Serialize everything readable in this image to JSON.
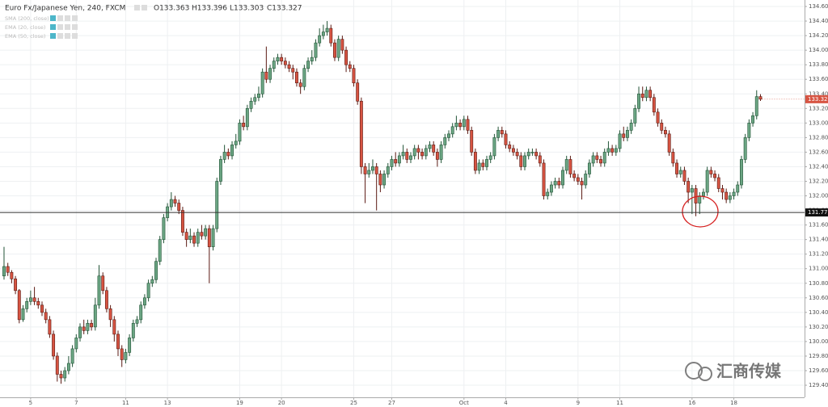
{
  "chart_data": {
    "type": "candlestick",
    "title": "Euro Fx/Japanese Yen, 240, FXCM",
    "ohlc_labels": [
      "O133.363",
      "H133.396",
      "L133.303",
      "C133.327"
    ],
    "indicators": [
      "SMA (200, close)",
      "EMA (20, close)",
      "EMA (50, close)"
    ],
    "up_color": "#6ba583",
    "up_edge": "#225437",
    "down_color": "#d75442",
    "down_edge": "#5b1a13",
    "grid": true,
    "open": [
      130.9,
      131.03,
      130.95,
      130.86,
      130.7,
      130.3,
      130.45,
      130.55,
      130.6,
      130.55,
      130.5,
      130.4,
      130.3,
      130.1,
      129.8,
      129.55,
      129.5,
      129.6,
      129.7,
      129.9,
      130.05,
      130.2,
      130.15,
      130.25,
      130.2,
      130.5,
      130.9,
      130.7,
      130.45,
      130.3,
      130.1,
      129.9,
      129.75,
      129.85,
      130.05,
      130.25,
      130.3,
      130.5,
      130.6,
      130.8,
      130.85,
      131.1,
      131.4,
      131.7,
      131.85,
      131.95,
      131.9,
      131.8,
      131.5,
      131.4,
      131.45,
      131.35,
      131.5,
      131.45,
      131.55,
      131.3,
      131.55,
      132.2,
      132.5,
      132.6,
      132.55,
      132.7,
      132.75,
      133.0,
      132.95,
      133.2,
      133.3,
      133.35,
      133.4,
      133.7,
      133.6,
      133.75,
      133.85,
      133.9,
      133.85,
      133.8,
      133.75,
      133.7,
      133.55,
      133.5,
      133.75,
      133.85,
      133.9,
      134.1,
      134.2,
      134.25,
      134.3,
      134.1,
      133.9,
      134.15,
      134.0,
      133.8,
      133.75,
      133.55,
      133.3,
      132.4,
      132.3,
      132.35,
      132.4,
      132.3,
      132.15,
      132.3,
      132.4,
      132.5,
      132.45,
      132.55,
      132.6,
      132.5,
      132.55,
      132.65,
      132.6,
      132.55,
      132.65,
      132.7,
      132.6,
      132.5,
      132.7,
      132.8,
      132.85,
      132.95,
      133.0,
      132.95,
      133.05,
      132.9,
      132.6,
      132.35,
      132.45,
      132.4,
      132.5,
      132.55,
      132.8,
      132.9,
      132.85,
      132.7,
      132.65,
      132.6,
      132.55,
      132.4,
      132.55,
      132.6,
      132.6,
      132.55,
      132.45,
      132.0,
      132.05,
      132.15,
      132.2,
      132.15,
      132.35,
      132.5,
      132.3,
      132.25,
      132.2,
      132.15,
      132.3,
      132.45,
      132.55,
      132.5,
      132.45,
      132.6,
      132.65,
      132.6,
      132.65,
      132.85,
      132.8,
      132.9,
      133.0,
      133.2,
      133.4,
      133.35,
      133.45,
      133.35,
      133.15,
      133.0,
      132.9,
      132.85,
      132.6,
      132.45,
      132.3,
      132.35,
      132.2,
      132.05,
      132.1,
      131.9,
      132.0,
      132.05,
      132.35,
      132.3,
      132.25,
      132.1,
      132.05,
      131.95,
      132.0,
      132.05,
      132.15,
      132.5,
      132.8,
      133.0,
      133.1,
      133.363
    ],
    "high": [
      131.3,
      131.08,
      130.98,
      130.9,
      130.72,
      130.5,
      130.6,
      130.7,
      130.75,
      130.6,
      130.55,
      130.45,
      130.35,
      130.15,
      129.85,
      129.6,
      129.65,
      129.8,
      129.95,
      130.1,
      130.25,
      130.3,
      130.3,
      130.3,
      130.6,
      131.05,
      130.95,
      130.75,
      130.5,
      130.35,
      130.15,
      129.95,
      129.9,
      130.1,
      130.3,
      130.35,
      130.55,
      130.65,
      130.85,
      130.9,
      131.15,
      131.45,
      131.75,
      131.9,
      132.05,
      132.0,
      131.95,
      131.85,
      131.55,
      131.55,
      131.5,
      131.55,
      131.6,
      131.6,
      131.6,
      131.6,
      132.25,
      132.55,
      132.7,
      132.65,
      132.75,
      132.85,
      133.05,
      133.1,
      133.25,
      133.35,
      133.4,
      133.5,
      133.75,
      134.05,
      133.8,
      133.9,
      133.95,
      133.95,
      133.9,
      133.85,
      133.8,
      133.75,
      133.6,
      133.8,
      133.9,
      134.0,
      134.15,
      134.3,
      134.35,
      134.4,
      134.35,
      134.15,
      134.2,
      134.2,
      134.05,
      133.85,
      133.8,
      133.6,
      133.35,
      132.45,
      132.45,
      132.5,
      132.45,
      132.35,
      132.35,
      132.45,
      132.55,
      132.6,
      132.6,
      132.7,
      132.65,
      132.6,
      132.7,
      132.7,
      132.65,
      132.7,
      132.75,
      132.75,
      132.65,
      132.75,
      132.85,
      132.9,
      133.0,
      133.1,
      133.05,
      133.1,
      133.1,
      132.95,
      132.65,
      132.5,
      132.5,
      132.55,
      132.6,
      132.85,
      132.95,
      132.95,
      132.9,
      132.75,
      132.7,
      132.65,
      132.6,
      132.6,
      132.65,
      132.65,
      132.65,
      132.6,
      132.5,
      132.1,
      132.2,
      132.25,
      132.25,
      132.4,
      132.55,
      132.55,
      132.35,
      132.3,
      132.25,
      132.35,
      132.5,
      132.6,
      132.6,
      132.55,
      132.65,
      132.75,
      132.7,
      132.7,
      132.9,
      132.95,
      132.95,
      133.05,
      133.25,
      133.5,
      133.5,
      133.5,
      133.5,
      133.4,
      133.2,
      133.05,
      132.95,
      132.9,
      132.65,
      132.5,
      132.4,
      132.4,
      132.25,
      132.15,
      132.15,
      132.05,
      132.1,
      132.4,
      132.4,
      132.35,
      132.3,
      132.15,
      132.1,
      132.05,
      132.1,
      132.2,
      132.55,
      132.85,
      133.05,
      133.15,
      133.45,
      133.396
    ],
    "low": [
      130.85,
      130.9,
      130.8,
      130.65,
      130.25,
      130.27,
      130.4,
      130.5,
      130.5,
      130.45,
      130.35,
      130.25,
      130.05,
      129.75,
      129.45,
      129.42,
      129.45,
      129.55,
      129.65,
      129.85,
      130.0,
      130.1,
      130.1,
      130.15,
      130.15,
      130.45,
      130.65,
      130.4,
      130.2,
      130.0,
      129.8,
      129.65,
      129.7,
      129.8,
      130.0,
      130.2,
      130.25,
      130.45,
      130.55,
      130.75,
      130.8,
      131.05,
      131.35,
      131.65,
      131.8,
      131.85,
      131.75,
      131.45,
      131.3,
      131.35,
      131.3,
      131.3,
      131.4,
      131.4,
      130.8,
      131.25,
      131.5,
      132.15,
      132.45,
      132.5,
      132.5,
      132.65,
      132.7,
      132.9,
      132.9,
      133.15,
      133.25,
      133.3,
      133.35,
      133.55,
      133.55,
      133.7,
      133.8,
      133.8,
      133.75,
      133.7,
      133.6,
      133.5,
      133.4,
      133.45,
      133.7,
      133.8,
      133.85,
      134.05,
      134.15,
      134.2,
      134.05,
      133.85,
      133.85,
      133.95,
      133.7,
      133.7,
      133.5,
      133.25,
      132.3,
      131.9,
      132.25,
      132.3,
      131.8,
      132.05,
      132.1,
      132.25,
      132.35,
      132.4,
      132.4,
      132.5,
      132.45,
      132.45,
      132.5,
      132.5,
      132.5,
      132.5,
      132.6,
      132.55,
      132.4,
      132.45,
      132.65,
      132.75,
      132.8,
      132.9,
      132.9,
      132.9,
      132.85,
      132.55,
      132.3,
      132.3,
      132.35,
      132.35,
      132.45,
      132.5,
      132.75,
      132.8,
      132.65,
      132.6,
      132.55,
      132.5,
      132.35,
      132.35,
      132.5,
      132.55,
      132.5,
      132.4,
      131.95,
      131.95,
      132.0,
      132.1,
      132.1,
      132.1,
      132.3,
      132.25,
      132.2,
      132.15,
      131.95,
      132.1,
      132.25,
      132.4,
      132.45,
      132.4,
      132.4,
      132.55,
      132.55,
      132.55,
      132.6,
      132.75,
      132.75,
      132.85,
      132.95,
      133.15,
      133.3,
      133.3,
      133.3,
      133.1,
      132.95,
      132.85,
      132.8,
      132.55,
      132.4,
      132.25,
      132.25,
      132.15,
      131.9,
      131.75,
      131.72,
      131.75,
      131.95,
      132.0,
      132.25,
      132.2,
      132.05,
      131.95,
      131.9,
      131.9,
      131.95,
      132.0,
      132.1,
      132.45,
      132.75,
      132.95,
      133.05,
      133.303
    ],
    "close": [
      131.03,
      130.95,
      130.86,
      130.7,
      130.3,
      130.45,
      130.55,
      130.6,
      130.55,
      130.5,
      130.4,
      130.3,
      130.1,
      129.8,
      129.55,
      129.5,
      129.6,
      129.7,
      129.9,
      130.05,
      130.2,
      130.15,
      130.25,
      130.2,
      130.5,
      130.9,
      130.7,
      130.45,
      130.3,
      130.1,
      129.9,
      129.75,
      129.85,
      130.05,
      130.25,
      130.3,
      130.5,
      130.6,
      130.8,
      130.85,
      131.1,
      131.4,
      131.7,
      131.85,
      131.95,
      131.9,
      131.8,
      131.5,
      131.4,
      131.45,
      131.35,
      131.5,
      131.45,
      131.55,
      131.3,
      131.55,
      132.2,
      132.5,
      132.6,
      132.55,
      132.7,
      132.75,
      133.0,
      132.95,
      133.2,
      133.3,
      133.35,
      133.4,
      133.7,
      133.6,
      133.75,
      133.85,
      133.9,
      133.85,
      133.8,
      133.75,
      133.7,
      133.55,
      133.5,
      133.75,
      133.85,
      133.9,
      134.1,
      134.2,
      134.25,
      134.3,
      134.1,
      133.9,
      134.15,
      134.0,
      133.8,
      133.75,
      133.55,
      133.3,
      132.4,
      132.3,
      132.35,
      132.4,
      132.3,
      132.15,
      132.3,
      132.4,
      132.5,
      132.45,
      132.55,
      132.6,
      132.5,
      132.55,
      132.65,
      132.6,
      132.55,
      132.65,
      132.7,
      132.6,
      132.5,
      132.7,
      132.8,
      132.85,
      132.95,
      133.0,
      132.95,
      133.05,
      132.9,
      132.6,
      132.35,
      132.45,
      132.4,
      132.5,
      132.55,
      132.8,
      132.9,
      132.85,
      132.7,
      132.65,
      132.6,
      132.55,
      132.4,
      132.55,
      132.6,
      132.6,
      132.55,
      132.45,
      132.0,
      132.05,
      132.15,
      132.2,
      132.15,
      132.35,
      132.5,
      132.3,
      132.25,
      132.2,
      132.15,
      132.3,
      132.45,
      132.55,
      132.5,
      132.45,
      132.6,
      132.65,
      132.6,
      132.65,
      132.85,
      132.8,
      132.9,
      133.0,
      133.2,
      133.4,
      133.35,
      133.45,
      133.35,
      133.15,
      133.0,
      132.9,
      132.85,
      132.6,
      132.45,
      132.3,
      132.35,
      132.2,
      132.05,
      132.1,
      131.9,
      132.0,
      132.05,
      132.35,
      132.3,
      132.25,
      132.1,
      132.05,
      131.95,
      132.0,
      132.05,
      132.15,
      132.5,
      132.8,
      133.0,
      133.1,
      133.363,
      133.327
    ],
    "xlim": [
      -1.06,
      210.6
    ],
    "xticks": [
      {
        "value": 7,
        "label": "5"
      },
      {
        "value": 19,
        "label": "7"
      },
      {
        "value": 32,
        "label": "11"
      },
      {
        "value": 43,
        "label": "13"
      },
      {
        "value": 62,
        "label": "19"
      },
      {
        "value": 73,
        "label": "20"
      },
      {
        "value": 92,
        "label": "25"
      },
      {
        "value": 102,
        "label": "27"
      },
      {
        "value": 121,
        "label": "Oct"
      },
      {
        "value": 132,
        "label": "4"
      },
      {
        "value": 151,
        "label": "9"
      },
      {
        "value": 162,
        "label": "11"
      },
      {
        "value": 181,
        "label": "16"
      },
      {
        "value": 192,
        "label": "18"
      }
    ],
    "ylim": [
      129.234,
      134.689
    ],
    "yticks": [
      {
        "value": 129.4,
        "label": "129.400"
      },
      {
        "value": 129.6,
        "label": "129.600"
      },
      {
        "value": 129.8,
        "label": "129.800"
      },
      {
        "value": 130.0,
        "label": "130.000"
      },
      {
        "value": 130.2,
        "label": "130.200"
      },
      {
        "value": 130.4,
        "label": "130.400"
      },
      {
        "value": 130.6,
        "label": "130.600"
      },
      {
        "value": 130.8,
        "label": "130.800"
      },
      {
        "value": 131.0,
        "label": "131.000"
      },
      {
        "value": 131.2,
        "label": "131.200"
      },
      {
        "value": 131.4,
        "label": "131.400"
      },
      {
        "value": 131.6,
        "label": "131.600"
      },
      {
        "value": 131.8,
        "label": "131.800"
      },
      {
        "value": 132.0,
        "label": "132.000"
      },
      {
        "value": 132.2,
        "label": "132.200"
      },
      {
        "value": 132.4,
        "label": "132.400"
      },
      {
        "value": 132.6,
        "label": "132.600"
      },
      {
        "value": 132.8,
        "label": "132.800"
      },
      {
        "value": 133.0,
        "label": "133.000"
      },
      {
        "value": 133.2,
        "label": "133.200"
      },
      {
        "value": 133.4,
        "label": "133.400"
      },
      {
        "value": 133.6,
        "label": "133.600"
      },
      {
        "value": 133.8,
        "label": "133.800"
      },
      {
        "value": 134.0,
        "label": "134.000"
      },
      {
        "value": 134.2,
        "label": "134.200"
      },
      {
        "value": 134.4,
        "label": "134.400"
      },
      {
        "value": 134.6,
        "label": "134.600"
      }
    ],
    "hline": 131.772,
    "last_price": 133.327,
    "watermark": "汇商传媒"
  }
}
